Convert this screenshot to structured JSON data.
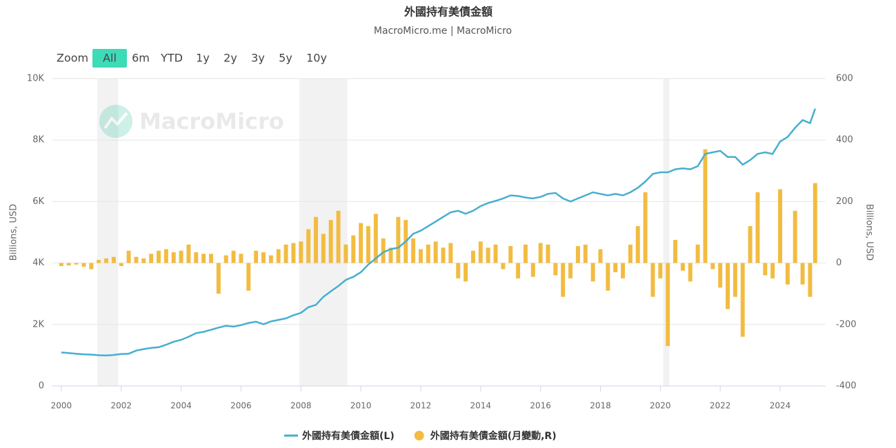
{
  "chart_data": {
    "type": "line-bar",
    "title": "外國持有美債金額",
    "subtitle": "MacroMicro.me | MacroMicro",
    "watermark": "MacroMicro",
    "zoom": {
      "label": "Zoom",
      "buttons": [
        "All",
        "6m",
        "YTD",
        "1y",
        "2y",
        "3y",
        "5y",
        "10y"
      ],
      "active": 0
    },
    "ylabel": "Billions, USD",
    "y2label": "Billions, USD",
    "xlim": [
      1999.68,
      2025.52
    ],
    "xticks": [
      2000,
      2002,
      2004,
      2006,
      2008,
      2010,
      2012,
      2014,
      2016,
      2018,
      2020,
      2022,
      2024
    ],
    "ylim": [
      0,
      10000
    ],
    "yticks": [
      0,
      {
        "value": 2000,
        "label": "2K"
      },
      {
        "value": 4000,
        "label": "4K"
      },
      {
        "value": 6000,
        "label": "6K"
      },
      {
        "value": 8000,
        "label": "8K"
      },
      {
        "value": 10000,
        "label": "10K"
      }
    ],
    "y2lim": [
      -400,
      600
    ],
    "y2ticks": [
      -400,
      -200,
      0,
      200,
      400,
      600
    ],
    "grid": true,
    "shaded_periods": [
      [
        2001.2,
        2001.9
      ],
      [
        2007.95,
        2009.55
      ],
      [
        2020.1,
        2020.3
      ]
    ],
    "x": [
      2000,
      2000.25,
      2000.5,
      2000.75,
      2001,
      2001.25,
      2001.5,
      2001.75,
      2002,
      2002.25,
      2002.5,
      2002.75,
      2003,
      2003.25,
      2003.5,
      2003.75,
      2004,
      2004.25,
      2004.5,
      2004.75,
      2005,
      2005.25,
      2005.5,
      2005.75,
      2006,
      2006.25,
      2006.5,
      2006.75,
      2007,
      2007.25,
      2007.5,
      2007.75,
      2008,
      2008.25,
      2008.5,
      2008.75,
      2009,
      2009.25,
      2009.5,
      2009.75,
      2010,
      2010.25,
      2010.5,
      2010.75,
      2011,
      2011.25,
      2011.5,
      2011.75,
      2012,
      2012.25,
      2012.5,
      2012.75,
      2013,
      2013.25,
      2013.5,
      2013.75,
      2014,
      2014.25,
      2014.5,
      2014.75,
      2015,
      2015.25,
      2015.5,
      2015.75,
      2016,
      2016.25,
      2016.5,
      2016.75,
      2017,
      2017.25,
      2017.5,
      2017.75,
      2018,
      2018.25,
      2018.5,
      2018.75,
      2019,
      2019.25,
      2019.5,
      2019.75,
      2020,
      2020.25,
      2020.5,
      2020.75,
      2021,
      2021.25,
      2021.5,
      2021.75,
      2022,
      2022.25,
      2022.5,
      2022.75,
      2023,
      2023.25,
      2023.5,
      2023.75,
      2024,
      2024.25,
      2024.5,
      2024.75,
      2025,
      2025.17
    ],
    "series": [
      {
        "name": "外國持有美債金額(L)",
        "color": "#45aecf",
        "kind": "line",
        "values": [
          1090,
          1070,
          1050,
          1030,
          1020,
          1000,
          990,
          1010,
          1040,
          1050,
          1150,
          1200,
          1240,
          1260,
          1340,
          1440,
          1500,
          1600,
          1720,
          1760,
          1830,
          1900,
          1960,
          1930,
          1980,
          2050,
          2090,
          2010,
          2100,
          2150,
          2200,
          2300,
          2380,
          2560,
          2640,
          2900,
          3080,
          3250,
          3450,
          3550,
          3700,
          3950,
          4150,
          4350,
          4450,
          4500,
          4700,
          4950,
          5050,
          5200,
          5350,
          5500,
          5650,
          5700,
          5600,
          5700,
          5850,
          5950,
          6020,
          6100,
          6200,
          6180,
          6130,
          6100,
          6150,
          6250,
          6280,
          6100,
          6000,
          6100,
          6200,
          6300,
          6250,
          6200,
          6250,
          6200,
          6300,
          6450,
          6650,
          6900,
          6950,
          6950,
          7050,
          7080,
          7050,
          7150,
          7550,
          7600,
          7650,
          7450,
          7450,
          7200,
          7350,
          7550,
          7600,
          7550,
          7950,
          8100,
          8400,
          8650,
          8550,
          9020
        ]
      },
      {
        "name": "外國持有美債金額(月變動,R)",
        "color": "#f2bc42",
        "kind": "bar",
        "axis": "y2",
        "values": [
          -10,
          -8,
          -5,
          -12,
          -20,
          10,
          15,
          20,
          -10,
          40,
          20,
          15,
          30,
          40,
          45,
          35,
          40,
          60,
          35,
          30,
          30,
          -100,
          25,
          40,
          30,
          -90,
          40,
          35,
          25,
          45,
          60,
          65,
          70,
          110,
          150,
          95,
          140,
          170,
          60,
          90,
          130,
          120,
          160,
          80,
          50,
          150,
          140,
          80,
          45,
          60,
          70,
          50,
          65,
          -50,
          -60,
          40,
          70,
          50,
          60,
          -20,
          55,
          -50,
          60,
          -45,
          65,
          60,
          -40,
          -110,
          -50,
          55,
          60,
          -60,
          45,
          -90,
          -30,
          -50,
          60,
          120,
          230,
          -110,
          -50,
          -270,
          75,
          -25,
          -60,
          60,
          370,
          -20,
          -80,
          -150,
          -110,
          -240,
          120,
          230,
          -40,
          -50,
          240,
          -70,
          170,
          -70,
          -110,
          260
        ]
      }
    ]
  }
}
